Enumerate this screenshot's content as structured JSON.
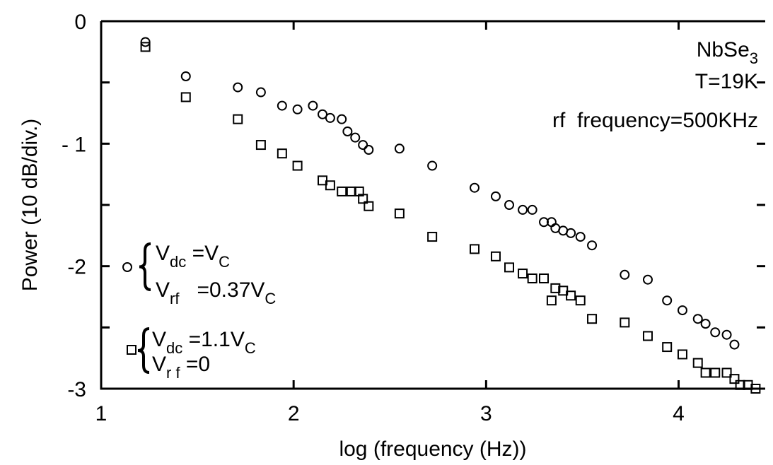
{
  "chart_data": {
    "type": "scatter",
    "xlabel": "log (frequency (Hz))",
    "ylabel": "Power (10 dB/div.)",
    "xlim": [
      1,
      4.45
    ],
    "xticks": [
      1,
      2,
      3,
      4
    ],
    "ylim": [
      -3,
      0
    ],
    "yticks": [
      0,
      {
        "value": -1,
        "label": "- 1"
      },
      -2,
      -3
    ],
    "yminor": [
      -0.5,
      -1.5,
      -2.5
    ],
    "annotations": [
      [
        "NbSe",
        "3"
      ],
      [
        "T=19K"
      ],
      [
        "rf  frequency=500KHz"
      ]
    ],
    "series": [
      {
        "marker": "circle",
        "color": "#000000",
        "label_lines": [
          [
            "V",
            "dc",
            " =V",
            "C"
          ],
          [
            "V",
            "rf",
            "   =0.37V",
            "C"
          ]
        ],
        "x": [
          1.23,
          1.44,
          1.71,
          1.83,
          1.94,
          2.02,
          2.1,
          2.15,
          2.19,
          2.25,
          2.28,
          2.32,
          2.36,
          2.39,
          2.55,
          2.72,
          2.94,
          3.05,
          3.12,
          3.19,
          3.24,
          3.3,
          3.34,
          3.36,
          3.4,
          3.44,
          3.49,
          3.55,
          3.72,
          3.84,
          3.94,
          4.02,
          4.1,
          4.14,
          4.19,
          4.25,
          4.29
        ],
        "values": [
          -0.17,
          -0.45,
          -0.54,
          -0.58,
          -0.69,
          -0.72,
          -0.69,
          -0.76,
          -0.79,
          -0.8,
          -0.9,
          -0.95,
          -1.01,
          -1.05,
          -1.04,
          -1.18,
          -1.36,
          -1.43,
          -1.5,
          -1.54,
          -1.54,
          -1.64,
          -1.64,
          -1.69,
          -1.71,
          -1.73,
          -1.76,
          -1.83,
          -2.07,
          -2.11,
          -2.28,
          -2.36,
          -2.43,
          -2.47,
          -2.54,
          -2.56,
          -2.64
        ]
      },
      {
        "marker": "square",
        "color": "#000000",
        "label_lines": [
          [
            "V",
            "dc",
            " =1.1V",
            "C"
          ],
          [
            "V",
            "r f",
            " =0"
          ]
        ],
        "x": [
          1.23,
          1.44,
          1.71,
          1.83,
          1.94,
          2.02,
          2.15,
          2.19,
          2.25,
          2.3,
          2.34,
          2.36,
          2.39,
          2.55,
          2.72,
          2.94,
          3.05,
          3.12,
          3.19,
          3.24,
          3.3,
          3.34,
          3.36,
          3.4,
          3.44,
          3.49,
          3.55,
          3.72,
          3.84,
          3.94,
          4.02,
          4.1,
          4.14,
          4.19,
          4.25,
          4.29,
          4.32,
          4.36,
          4.4
        ],
        "values": [
          -0.21,
          -0.62,
          -0.8,
          -1.01,
          -1.08,
          -1.18,
          -1.3,
          -1.34,
          -1.39,
          -1.39,
          -1.39,
          -1.45,
          -1.51,
          -1.57,
          -1.76,
          -1.86,
          -1.92,
          -2.01,
          -2.06,
          -2.1,
          -2.1,
          -2.28,
          -2.18,
          -2.2,
          -2.24,
          -2.28,
          -2.43,
          -2.46,
          -2.57,
          -2.66,
          -2.72,
          -2.79,
          -2.87,
          -2.87,
          -2.87,
          -2.92,
          -2.97,
          -2.97,
          -3.0
        ]
      }
    ]
  }
}
